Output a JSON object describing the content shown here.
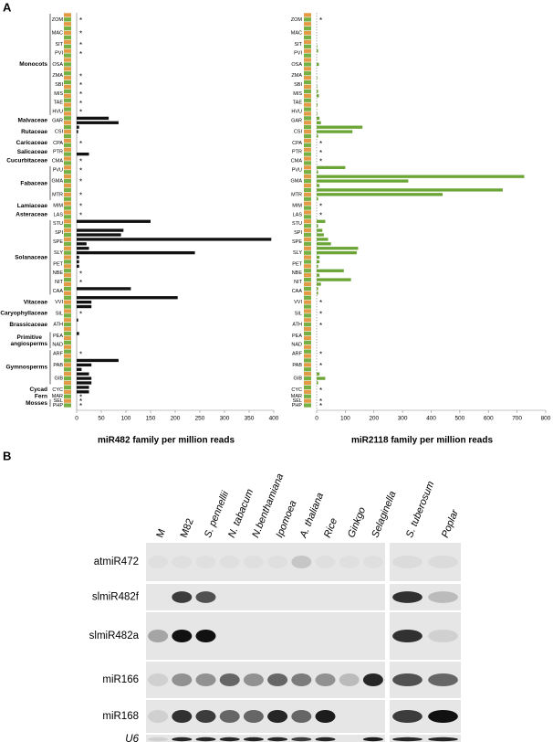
{
  "panel_a": {
    "label": "A",
    "marker": "*",
    "charts": [
      {
        "type": "bar",
        "xlabel": "miR482 family per million reads",
        "xlim": [
          0,
          400
        ],
        "xticks": [
          0,
          50,
          100,
          150,
          200,
          250,
          300,
          350,
          400
        ],
        "color": "#111111"
      },
      {
        "type": "bar",
        "xlabel": "miR2118 family per million reads",
        "xlim": [
          0,
          800
        ],
        "xticks": [
          0,
          100,
          200,
          300,
          400,
          500,
          600,
          700,
          800
        ],
        "color": "#6aa536"
      }
    ],
    "groups": [
      {
        "name": "Monocots",
        "species": [
          {
            "code": "ZOM",
            "values": [
              [
                0,
                0,
                0
              ],
              [
                0,
                0,
                0
              ]
            ],
            "absent": [
              true,
              true
            ]
          },
          {
            "code": "MAC",
            "values": [
              [
                0,
                0,
                0
              ],
              [
                0,
                0,
                0
              ]
            ],
            "absent": [
              true,
              false
            ]
          },
          {
            "code": "SIT",
            "values": [
              [
                0,
                0
              ],
              [
                0,
                2
              ]
            ],
            "absent": [
              true,
              false
            ]
          },
          {
            "code": "PVI",
            "values": [
              [
                0,
                0
              ],
              [
                5,
                0
              ]
            ],
            "absent": [
              true,
              false
            ]
          },
          {
            "code": "OSA",
            "values": [
              [
                0,
                0,
                0
              ],
              [
                0,
                8,
                0
              ]
            ],
            "absent": [
              false,
              false
            ]
          },
          {
            "code": "ZMA",
            "values": [
              [
                0,
                0
              ],
              [
                0,
                2
              ]
            ],
            "absent": [
              true,
              false
            ]
          },
          {
            "code": "SBI",
            "values": [
              [
                0,
                0
              ],
              [
                0,
                2
              ]
            ],
            "absent": [
              true,
              false
            ]
          },
          {
            "code": "MIS",
            "values": [
              [
                0,
                0
              ],
              [
                5,
                8
              ]
            ],
            "absent": [
              true,
              false
            ]
          },
          {
            "code": "TAE",
            "values": [
              [
                0,
                0
              ],
              [
                0,
                3
              ]
            ],
            "absent": [
              true,
              false
            ]
          },
          {
            "code": "HVU",
            "values": [
              [
                0,
                0
              ],
              [
                0,
                2
              ]
            ],
            "absent": [
              true,
              false
            ]
          }
        ]
      },
      {
        "name": "Malvaceae",
        "species": [
          {
            "code": "GAR",
            "values": [
              [
                65,
                85
              ],
              [
                10,
                15
              ]
            ],
            "absent": [
              false,
              false
            ]
          }
        ]
      },
      {
        "name": "Rutaceae",
        "species": [
          {
            "code": "CSI",
            "values": [
              [
                5,
                3,
                0
              ],
              [
                160,
                125,
                5
              ]
            ],
            "absent": [
              false,
              false
            ]
          }
        ]
      },
      {
        "name": "Caricaceae",
        "species": [
          {
            "code": "CPA",
            "values": [
              [
                0,
                0
              ],
              [
                0,
                0
              ]
            ],
            "absent": [
              true,
              true
            ]
          }
        ]
      },
      {
        "name": "Salicaceae",
        "species": [
          {
            "code": "PTR",
            "values": [
              [
                0,
                25
              ],
              [
                0,
                0
              ]
            ],
            "absent": [
              false,
              true
            ]
          }
        ]
      },
      {
        "name": "Cucurbitaceae",
        "species": [
          {
            "code": "CMA",
            "values": [
              [
                0,
                0
              ],
              [
                0,
                0
              ]
            ],
            "absent": [
              true,
              true
            ]
          }
        ]
      },
      {
        "name": "Fabaceae",
        "species": [
          {
            "code": "PVU",
            "values": [
              [
                0,
                0
              ],
              [
                100,
                5
              ]
            ],
            "absent": [
              true,
              false
            ]
          },
          {
            "code": "GMA",
            "values": [
              [
                0,
                0,
                0
              ],
              [
                725,
                320,
                10
              ]
            ],
            "absent": [
              true,
              false
            ]
          },
          {
            "code": "MTR",
            "values": [
              [
                0,
                0,
                0
              ],
              [
                650,
                440,
                5
              ]
            ],
            "absent": [
              true,
              false
            ]
          }
        ]
      },
      {
        "name": "Lamiaceae",
        "species": [
          {
            "code": "MIM",
            "values": [
              [
                0,
                0
              ],
              [
                0,
                0
              ]
            ],
            "absent": [
              true,
              true
            ]
          }
        ]
      },
      {
        "name": "Asteraceae",
        "species": [
          {
            "code": "LAS",
            "values": [
              [
                0,
                0
              ],
              [
                0,
                0
              ]
            ],
            "absent": [
              true,
              true
            ]
          }
        ]
      },
      {
        "name": "Solanaceae",
        "species": [
          {
            "code": "STU",
            "values": [
              [
                150,
                0
              ],
              [
                30,
                5
              ]
            ],
            "absent": [
              false,
              false
            ]
          },
          {
            "code": "SPI",
            "values": [
              [
                95,
                90
              ],
              [
                20,
                25
              ]
            ],
            "absent": [
              false,
              false
            ]
          },
          {
            "code": "SPE",
            "values": [
              [
                395,
                20
              ],
              [
                40,
                50
              ]
            ],
            "absent": [
              false,
              false
            ]
          },
          {
            "code": "SLY",
            "values": [
              [
                25,
                240,
                5
              ],
              [
                145,
                140,
                10
              ]
            ],
            "absent": [
              false,
              false
            ]
          },
          {
            "code": "PET",
            "values": [
              [
                5,
                5
              ],
              [
                10,
                5
              ]
            ],
            "absent": [
              false,
              false
            ]
          },
          {
            "code": "NBE",
            "values": [
              [
                0,
                0
              ],
              [
                95,
                10
              ]
            ],
            "absent": [
              true,
              false
            ]
          },
          {
            "code": "NIT",
            "values": [
              [
                0,
                0
              ],
              [
                120,
                15
              ]
            ],
            "absent": [
              true,
              false
            ]
          },
          {
            "code": "CAA",
            "values": [
              [
                110,
                0
              ],
              [
                5,
                5
              ]
            ],
            "absent": [
              false,
              false
            ]
          }
        ]
      },
      {
        "name": "Vitaceae",
        "species": [
          {
            "code": "VVI",
            "values": [
              [
                205,
                30,
                30
              ],
              [
                0,
                0,
                0
              ]
            ],
            "absent": [
              false,
              true
            ]
          }
        ]
      },
      {
        "name": "Caryophyllaceae",
        "species": [
          {
            "code": "SIL",
            "values": [
              [
                0,
                0
              ],
              [
                0,
                0
              ]
            ],
            "absent": [
              true,
              true
            ]
          }
        ]
      },
      {
        "name": "Brassicaceae",
        "species": [
          {
            "code": "ATH",
            "values": [
              [
                3,
                0,
                0
              ],
              [
                0,
                0,
                0
              ]
            ],
            "absent": [
              false,
              true
            ]
          }
        ]
      },
      {
        "name": "Primitive angiosperms",
        "species": [
          {
            "code": "PEA",
            "values": [
              [
                5,
                0
              ],
              [
                0,
                0
              ]
            ],
            "absent": [
              false,
              false
            ]
          },
          {
            "code": "NAD",
            "values": [
              [
                0,
                0
              ],
              [
                0,
                0
              ]
            ],
            "absent": [
              false,
              false
            ]
          }
        ]
      },
      {
        "name": "Gymnosperms",
        "species": [
          {
            "code": "ARF",
            "values": [
              [
                0,
                0
              ],
              [
                0,
                0
              ]
            ],
            "absent": [
              true,
              true
            ]
          },
          {
            "code": "PAB",
            "values": [
              [
                85,
                30,
                10
              ],
              [
                0,
                0,
                0
              ]
            ],
            "absent": [
              false,
              true
            ]
          },
          {
            "code": "GIB",
            "values": [
              [
                25,
                30,
                30
              ],
              [
                10,
                30,
                5
              ]
            ],
            "absent": [
              false,
              false
            ]
          }
        ]
      },
      {
        "name": "Cycad",
        "species": [
          {
            "code": "CYC",
            "values": [
              [
                25,
                25
              ],
              [
                0,
                0
              ]
            ],
            "absent": [
              false,
              true
            ]
          }
        ]
      },
      {
        "name": "Fern",
        "species": [
          {
            "code": "MAR",
            "values": [
              [
                0
              ],
              [
                0
              ]
            ],
            "absent": [
              true,
              false
            ]
          }
        ]
      },
      {
        "name": "Mosses",
        "species": [
          {
            "code": "SEL",
            "values": [
              [
                0
              ],
              [
                0
              ]
            ],
            "absent": [
              true,
              true
            ]
          },
          {
            "code": "PHP",
            "values": [
              [
                0
              ],
              [
                0
              ]
            ],
            "absent": [
              true,
              true
            ]
          }
        ]
      }
    ]
  },
  "panel_b": {
    "label": "B",
    "blots": [
      {
        "lanes": [
          {
            "name": "M",
            "italic": false
          },
          {
            "name": "M82",
            "italic": false
          },
          {
            "name": "S. pennellii",
            "italic": true
          },
          {
            "name": "N. tabacum",
            "italic": true
          },
          {
            "name": "N.benthamiana",
            "italic": true
          },
          {
            "name": "Ipomoea",
            "italic": true
          },
          {
            "name": "A. thaliana",
            "italic": true
          },
          {
            "name": "Rice",
            "italic": true
          },
          {
            "name": "Ginkgo",
            "italic": true
          },
          {
            "name": "Selaginella",
            "italic": true
          }
        ]
      },
      {
        "lanes": [
          {
            "name": "S. tuberosum",
            "italic": true
          },
          {
            "name": "Poplar",
            "italic": true
          }
        ]
      }
    ],
    "probes": [
      {
        "name": "atmiR472",
        "italic": false,
        "bands": [
          [
            0.03,
            0.03,
            0.03,
            0.03,
            0.03,
            0.03,
            0.15,
            0.03,
            0.03,
            0.03
          ],
          [
            0.05,
            0.05
          ]
        ]
      },
      {
        "name": "slmiR482f",
        "italic": false,
        "bands": [
          [
            0,
            0.8,
            0.7,
            0,
            0,
            0,
            0,
            0,
            0,
            0
          ],
          [
            0.85,
            0.2
          ]
        ]
      },
      {
        "name": "slmiR482a",
        "italic": false,
        "bands": [
          [
            0.3,
            1,
            1,
            0,
            0,
            0,
            0,
            0,
            0,
            0
          ],
          [
            0.85,
            0.1
          ]
        ]
      },
      {
        "name": "miR166",
        "italic": false,
        "bands": [
          [
            0.1,
            0.4,
            0.4,
            0.6,
            0.4,
            0.6,
            0.5,
            0.4,
            0.2,
            0.9
          ],
          [
            0.7,
            0.6
          ]
        ]
      },
      {
        "name": "miR168",
        "italic": false,
        "bands": [
          [
            0.1,
            0.85,
            0.8,
            0.6,
            0.6,
            0.9,
            0.6,
            0.95,
            0,
            0
          ],
          [
            0.8,
            1
          ]
        ]
      },
      {
        "name": "U6",
        "italic": true,
        "bands": [
          [
            0.1,
            0.9,
            0.9,
            0.9,
            0.9,
            0.9,
            0.8,
            0.9,
            0,
            0.95
          ],
          [
            0.9,
            0.9
          ]
        ]
      }
    ]
  }
}
